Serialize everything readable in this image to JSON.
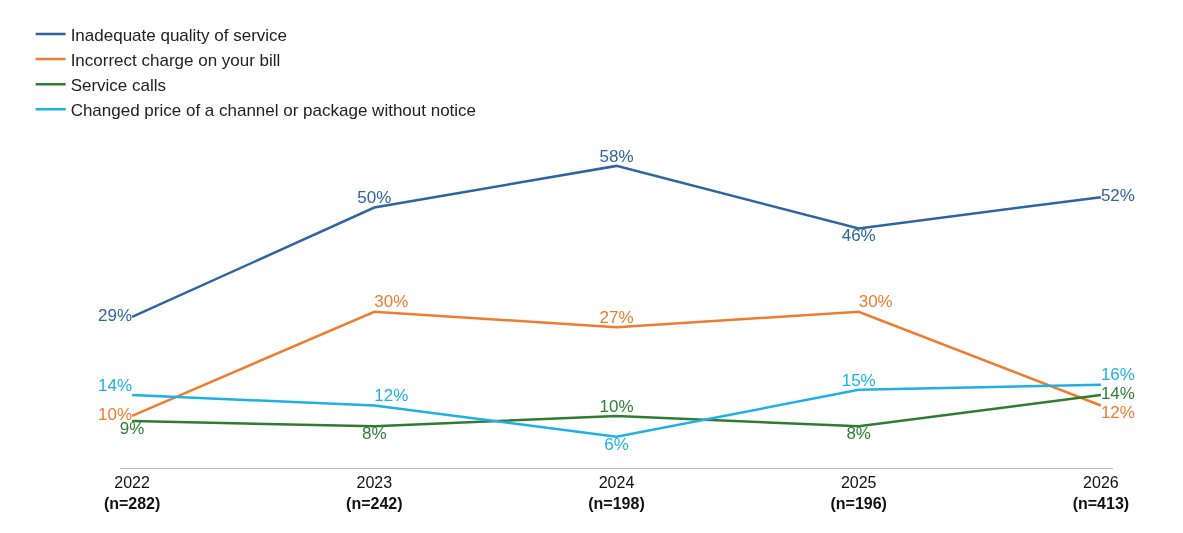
{
  "chart_data": {
    "type": "line",
    "categories": [
      "2022\n(n=282)",
      "2023\n(n=242)",
      "2024\n(n=198)",
      "2025\n(n=196)",
      "2026\n(n=413)"
    ],
    "series": [
      {
        "name": "Inadequate quality of service",
        "color": "#2e64a0",
        "values": [
          29,
          50,
          58,
          46,
          52
        ],
        "value_labels": [
          "29%",
          "50%",
          "58%",
          "46%",
          "52%"
        ]
      },
      {
        "name": "Incorrect charge on your bill",
        "color": "#ed7d31",
        "values": [
          10,
          30,
          27,
          30,
          12
        ],
        "value_labels": [
          "10%",
          "30%",
          "27%",
          "30%",
          "12%"
        ]
      },
      {
        "name": "Service calls",
        "color": "#2e7d32",
        "values": [
          9,
          8,
          10,
          8,
          14
        ],
        "value_labels": [
          "9%",
          "8%",
          "10%",
          "8%",
          "14%"
        ]
      },
      {
        "name": "Changed price of a channel or package without notice",
        "color": "#1fb0e6",
        "values": [
          14,
          12,
          6,
          15,
          16
        ],
        "value_labels": [
          "14%",
          "12%",
          "6%",
          "15%",
          "16%"
        ]
      }
    ],
    "legend": "top left",
    "grid": false,
    "marker": "none",
    "line_style": "solid"
  }
}
